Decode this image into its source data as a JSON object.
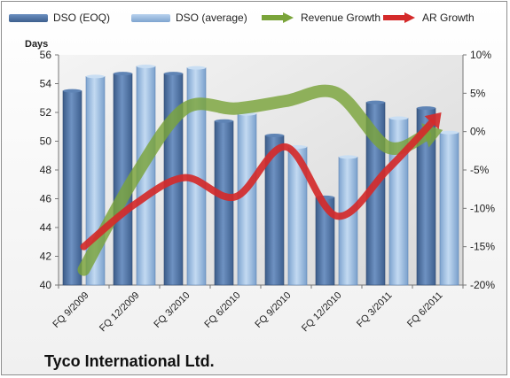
{
  "company": "Tyco International Ltd.",
  "colors": {
    "dso_eoq": "#4d74a8",
    "dso_average": "#94b7de",
    "revenue_growth": "#7aa43a",
    "ar_growth": "#d42a2a"
  },
  "chart_data": {
    "type": "bar",
    "categories": [
      "FQ 9/2009",
      "FQ 12/2009",
      "FQ 3/2010",
      "FQ 6/2010",
      "FQ 9/2010",
      "FQ 12/2010",
      "FQ 3/2011",
      "FQ 6/2011"
    ],
    "ylabel": "Days",
    "ylim": [
      40,
      56
    ],
    "y_ticks": [
      "40",
      "42",
      "44",
      "46",
      "48",
      "50",
      "52",
      "54",
      "56"
    ],
    "y2lim": [
      -20,
      10
    ],
    "y2_ticks": [
      "-20%",
      "-15%",
      "-10%",
      "-5%",
      "0%",
      "5%",
      "10%"
    ],
    "series": [
      {
        "name": "DSO (EOQ)",
        "axis": "left",
        "kind": "bar",
        "values": [
          53.5,
          54.7,
          54.7,
          51.4,
          50.4,
          46.1,
          52.7,
          52.3
        ]
      },
      {
        "name": "DSO (average)",
        "axis": "left",
        "kind": "bar",
        "values": [
          54.5,
          55.2,
          55.1,
          51.9,
          49.6,
          48.9,
          51.6,
          50.6
        ]
      },
      {
        "name": "Revenue Growth",
        "axis": "right",
        "kind": "arrow-line",
        "values": [
          -18,
          -6,
          3,
          3,
          4,
          5,
          -2,
          0
        ]
      },
      {
        "name": "AR Growth",
        "axis": "right",
        "kind": "arrow-line",
        "values": [
          -15,
          -9.5,
          -6,
          -8.5,
          -2,
          -11,
          -5,
          2
        ]
      }
    ],
    "legend_position": "top",
    "grid": false
  }
}
